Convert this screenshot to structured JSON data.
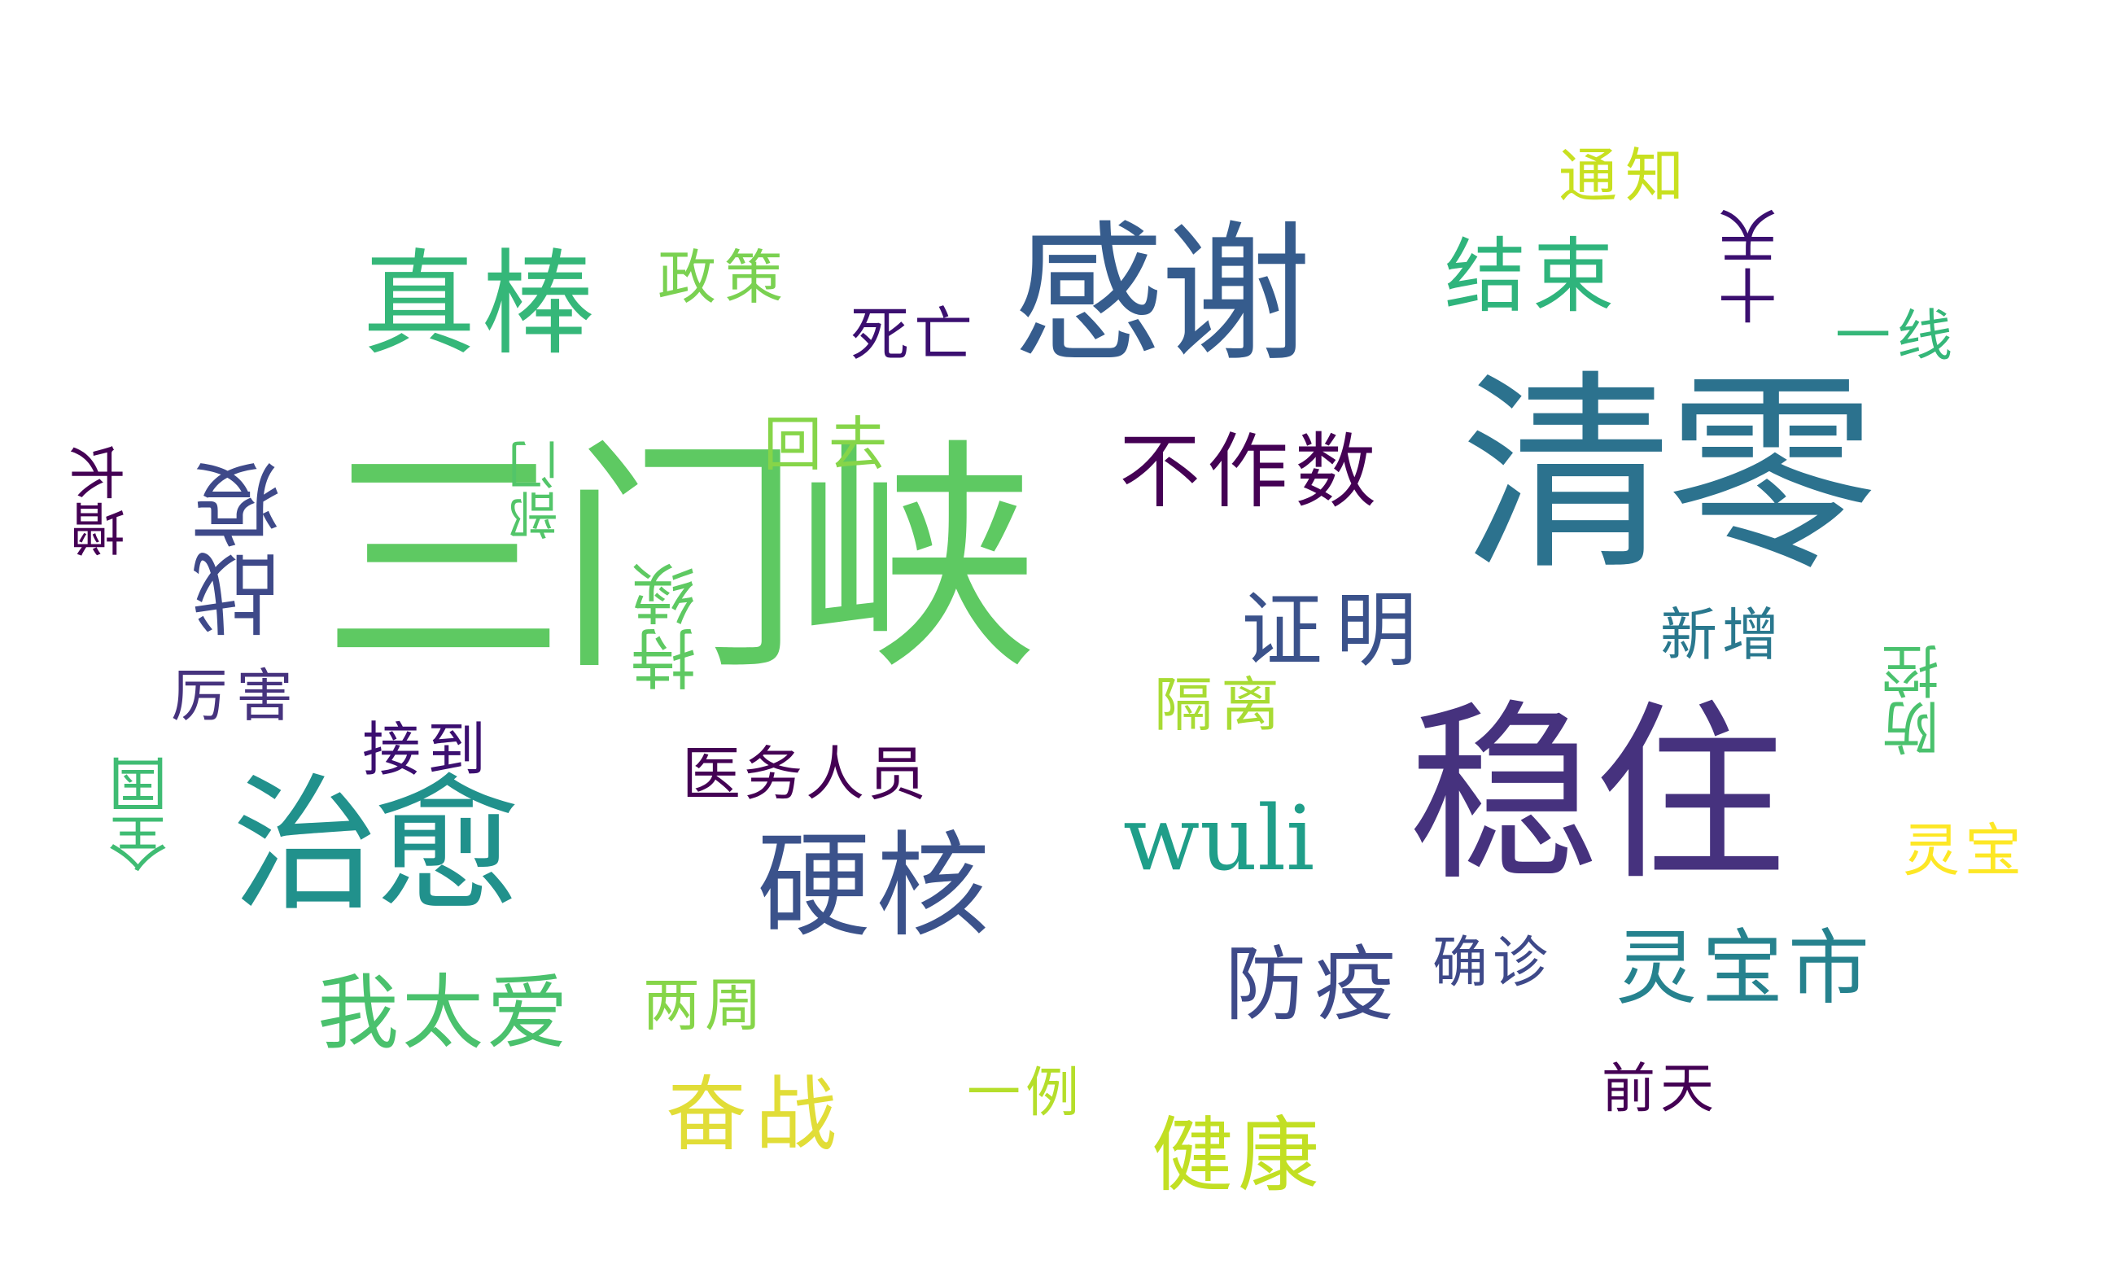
{
  "words": [
    {
      "text": "三门峡",
      "color": "#5ec962"
    },
    {
      "text": "清零",
      "color": "#2c728e"
    },
    {
      "text": "稳住",
      "color": "#46327e"
    },
    {
      "text": "感谢",
      "color": "#365c8d"
    },
    {
      "text": "治愈",
      "color": "#21918c"
    },
    {
      "text": "真棒",
      "color": "#35b779"
    },
    {
      "text": "硬核",
      "color": "#3b528b"
    },
    {
      "text": "不作数",
      "color": "#440154"
    },
    {
      "text": "战疫",
      "color": "#3e4989"
    },
    {
      "text": "结束",
      "color": "#2fb47c"
    },
    {
      "text": "证明",
      "color": "#3b528b"
    },
    {
      "text": "wuli",
      "color": "#1f9e89"
    },
    {
      "text": "我太爱",
      "color": "#4ac16d"
    },
    {
      "text": "灵宝市",
      "color": "#26828e"
    },
    {
      "text": "防疫",
      "color": "#3e4a89"
    },
    {
      "text": "健康",
      "color": "#c2df23"
    },
    {
      "text": "奋战",
      "color": "#e1dd37"
    },
    {
      "text": "医务人员",
      "color": "#440154"
    },
    {
      "text": "持续",
      "color": "#5ec962"
    },
    {
      "text": "死亡",
      "color": "#3b0f70"
    },
    {
      "text": "政策",
      "color": "#7ad151"
    },
    {
      "text": "回去",
      "color": "#86d549"
    },
    {
      "text": "十天",
      "color": "#3b0f70"
    },
    {
      "text": "一线",
      "color": "#35b779"
    },
    {
      "text": "通知",
      "color": "#c8e020"
    },
    {
      "text": "部门",
      "color": "#52c569"
    },
    {
      "text": "增长",
      "color": "#440154"
    },
    {
      "text": "厉害",
      "color": "#46337e"
    },
    {
      "text": "接到",
      "color": "#3b0f70"
    },
    {
      "text": "全国",
      "color": "#3fbc73"
    },
    {
      "text": "隔离",
      "color": "#a8db34"
    },
    {
      "text": "新增",
      "color": "#2a788e"
    },
    {
      "text": "防控",
      "color": "#4ac16d"
    },
    {
      "text": "确诊",
      "color": "#3e4989"
    },
    {
      "text": "两周",
      "color": "#86d549"
    },
    {
      "text": "一例",
      "color": "#b5de2b"
    },
    {
      "text": "前天",
      "color": "#440154"
    },
    {
      "text": "灵宝",
      "color": "#fde725"
    }
  ]
}
